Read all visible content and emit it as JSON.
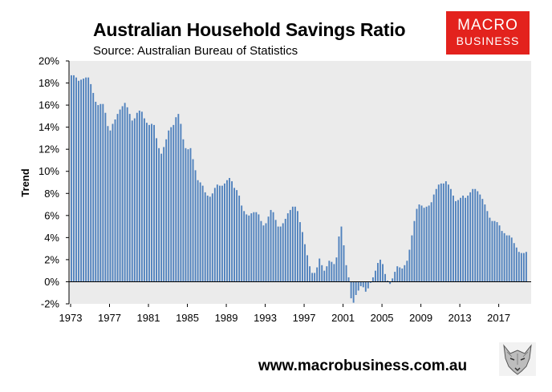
{
  "header": {
    "title": "Australian Household Savings Ratio",
    "subtitle": "Source: Australian Bureau of Statistics"
  },
  "logo": {
    "line1": "MACRO",
    "line2": "BUSINESS"
  },
  "footer": {
    "website": "www.macrobusiness.com.au"
  },
  "colors": {
    "bar": "#4f81bd",
    "plot_bg": "#ebebeb",
    "logo_bg": "#e3221d"
  },
  "chart_data": {
    "type": "bar",
    "title": "Australian Household Savings Ratio",
    "subtitle": "Source: Australian Bureau of Statistics",
    "ylabel": "Trend",
    "xlabel": "",
    "ylim": [
      -2,
      20
    ],
    "yticks": [
      -2,
      0,
      2,
      4,
      6,
      8,
      10,
      12,
      14,
      16,
      18,
      20
    ],
    "ytick_labels": [
      "-2%",
      "0%",
      "2%",
      "4%",
      "6%",
      "8%",
      "10%",
      "12%",
      "14%",
      "16%",
      "18%",
      "20%"
    ],
    "xticks": [
      1973,
      1977,
      1981,
      1985,
      1989,
      1993,
      1997,
      2001,
      2005,
      2009,
      2013,
      2017
    ],
    "x_start": 1973,
    "frequency": "quarterly",
    "grid": false,
    "legend": "none",
    "values": [
      18.7,
      18.7,
      18.5,
      18.2,
      18.3,
      18.4,
      18.5,
      18.5,
      17.9,
      17.1,
      16.3,
      16.0,
      16.1,
      16.1,
      15.3,
      14.1,
      13.7,
      14.3,
      14.7,
      15.2,
      15.6,
      15.9,
      16.2,
      15.8,
      15.2,
      14.6,
      14.8,
      15.3,
      15.5,
      15.4,
      14.8,
      14.4,
      14.2,
      14.3,
      14.2,
      13.0,
      12.1,
      11.6,
      12.2,
      12.9,
      13.7,
      14.0,
      14.2,
      14.9,
      15.2,
      14.3,
      12.9,
      12.1,
      12.0,
      12.1,
      11.1,
      10.1,
      9.2,
      9.0,
      8.7,
      8.1,
      7.8,
      7.7,
      8.0,
      8.5,
      8.8,
      8.7,
      8.7,
      8.9,
      9.2,
      9.4,
      9.1,
      8.5,
      8.3,
      7.8,
      6.9,
      6.4,
      6.1,
      6.0,
      6.2,
      6.3,
      6.3,
      6.1,
      5.5,
      5.1,
      5.3,
      5.9,
      6.5,
      6.3,
      5.6,
      5.0,
      5.0,
      5.3,
      5.7,
      6.2,
      6.5,
      6.8,
      6.8,
      6.4,
      5.4,
      4.5,
      3.4,
      2.4,
      1.4,
      0.8,
      0.8,
      1.3,
      2.1,
      1.5,
      1.0,
      1.4,
      1.9,
      1.8,
      1.6,
      2.2,
      4.1,
      5.0,
      3.3,
      1.5,
      0.4,
      -1.5,
      -1.9,
      -1.2,
      -0.8,
      -0.4,
      -0.5,
      -0.9,
      -0.6,
      -0.1,
      0.4,
      1.0,
      1.7,
      2.0,
      1.6,
      0.7,
      0.1,
      -0.2,
      0.3,
      0.9,
      1.4,
      1.3,
      1.2,
      1.5,
      1.9,
      2.9,
      4.2,
      5.5,
      6.6,
      7.0,
      6.9,
      6.7,
      6.8,
      6.9,
      7.2,
      7.9,
      8.4,
      8.8,
      8.9,
      8.9,
      9.1,
      8.8,
      8.4,
      7.8,
      7.3,
      7.4,
      7.6,
      7.8,
      7.6,
      7.8,
      8.1,
      8.4,
      8.4,
      8.2,
      7.9,
      7.5,
      7.0,
      6.4,
      5.8,
      5.5,
      5.5,
      5.4,
      5.1,
      4.6,
      4.4,
      4.2,
      4.2,
      4.0,
      3.5,
      3.1,
      2.7,
      2.6,
      2.6,
      2.7
    ]
  }
}
